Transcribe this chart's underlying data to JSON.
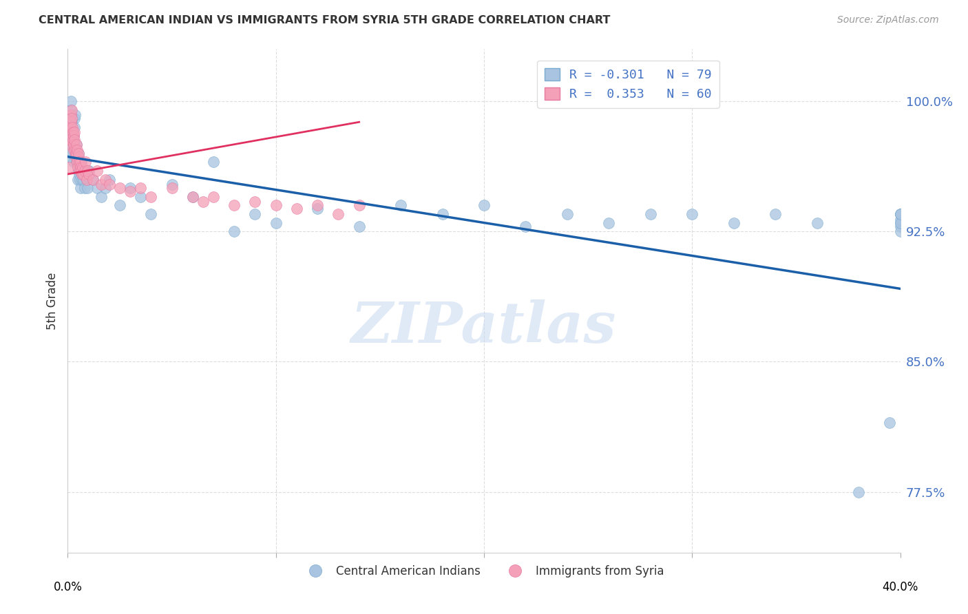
{
  "title": "CENTRAL AMERICAN INDIAN VS IMMIGRANTS FROM SYRIA 5TH GRADE CORRELATION CHART",
  "source": "Source: ZipAtlas.com",
  "ylabel": "5th Grade",
  "yticks": [
    77.5,
    85.0,
    92.5,
    100.0
  ],
  "ytick_labels": [
    "77.5%",
    "85.0%",
    "92.5%",
    "100.0%"
  ],
  "xlim": [
    0.0,
    40.0
  ],
  "ylim": [
    74.0,
    103.0
  ],
  "legend_blue_r": "-0.301",
  "legend_blue_n": "79",
  "legend_pink_r": "0.353",
  "legend_pink_n": "60",
  "blue_color": "#a8c4e0",
  "blue_edge_color": "#7aaad0",
  "pink_color": "#f4a0b8",
  "pink_edge_color": "#e878a0",
  "trend_blue_color": "#1a5fa8",
  "trend_pink_color": "#e03060",
  "watermark": "ZIPatlas",
  "watermark_color": [
    0.78,
    0.85,
    0.95
  ],
  "grid_color": "#dddddd",
  "background_color": "#ffffff",
  "blue_scatter_x": [
    0.05,
    0.08,
    0.1,
    0.12,
    0.14,
    0.15,
    0.16,
    0.18,
    0.2,
    0.22,
    0.24,
    0.25,
    0.27,
    0.28,
    0.3,
    0.32,
    0.33,
    0.35,
    0.37,
    0.38,
    0.4,
    0.42,
    0.44,
    0.45,
    0.47,
    0.5,
    0.52,
    0.55,
    0.58,
    0.6,
    0.62,
    0.65,
    0.68,
    0.7,
    0.75,
    0.8,
    0.85,
    0.9,
    0.95,
    1.0,
    1.2,
    1.4,
    1.6,
    1.8,
    2.0,
    2.5,
    3.0,
    3.5,
    4.0,
    5.0,
    6.0,
    7.0,
    8.0,
    9.0,
    10.0,
    12.0,
    14.0,
    16.0,
    18.0,
    20.0,
    22.0,
    24.0,
    26.0,
    28.0,
    30.0,
    32.0,
    34.0,
    36.0,
    38.0,
    39.5,
    40.0,
    40.0,
    40.0,
    40.0,
    40.0,
    40.0,
    40.0,
    40.0,
    40.0
  ],
  "blue_scatter_y": [
    96.8,
    98.5,
    97.2,
    99.1,
    98.3,
    100.0,
    99.5,
    98.8,
    97.5,
    99.0,
    98.2,
    97.8,
    96.5,
    98.0,
    97.5,
    99.0,
    98.5,
    99.2,
    97.0,
    96.8,
    97.5,
    96.5,
    97.0,
    96.8,
    95.5,
    96.0,
    97.0,
    95.8,
    95.5,
    96.2,
    95.0,
    96.5,
    95.5,
    96.0,
    95.5,
    95.0,
    96.0,
    95.5,
    95.0,
    96.0,
    95.5,
    95.0,
    94.5,
    95.0,
    95.5,
    94.0,
    95.0,
    94.5,
    93.5,
    95.2,
    94.5,
    96.5,
    92.5,
    93.5,
    93.0,
    93.8,
    92.8,
    94.0,
    93.5,
    94.0,
    92.8,
    93.5,
    93.0,
    93.5,
    93.5,
    93.0,
    93.5,
    93.0,
    77.5,
    81.5,
    92.8,
    93.0,
    93.2,
    93.5,
    92.5,
    93.5,
    93.5,
    93.0,
    93.5
  ],
  "pink_scatter_x": [
    0.05,
    0.08,
    0.1,
    0.12,
    0.14,
    0.15,
    0.16,
    0.18,
    0.2,
    0.22,
    0.24,
    0.25,
    0.27,
    0.28,
    0.3,
    0.32,
    0.33,
    0.35,
    0.37,
    0.38,
    0.4,
    0.42,
    0.44,
    0.45,
    0.47,
    0.5,
    0.52,
    0.55,
    0.58,
    0.6,
    0.62,
    0.65,
    0.68,
    0.7,
    0.75,
    0.8,
    0.85,
    0.9,
    0.95,
    1.0,
    1.2,
    1.4,
    1.6,
    1.8,
    2.0,
    2.5,
    3.0,
    3.5,
    4.0,
    5.0,
    6.0,
    6.5,
    7.0,
    8.0,
    9.0,
    10.0,
    11.0,
    12.0,
    13.0,
    14.0
  ],
  "pink_scatter_y": [
    96.2,
    97.5,
    98.2,
    97.8,
    98.5,
    99.2,
    98.8,
    99.5,
    99.0,
    98.5,
    97.8,
    98.2,
    97.2,
    98.0,
    97.5,
    98.2,
    97.8,
    97.2,
    96.8,
    97.0,
    97.5,
    97.0,
    96.5,
    97.2,
    96.2,
    96.8,
    97.0,
    96.5,
    96.0,
    96.5,
    96.2,
    96.0,
    95.8,
    96.2,
    95.8,
    96.0,
    96.5,
    95.5,
    96.0,
    95.8,
    95.5,
    96.0,
    95.2,
    95.5,
    95.2,
    95.0,
    94.8,
    95.0,
    94.5,
    95.0,
    94.5,
    94.2,
    94.5,
    94.0,
    94.2,
    94.0,
    93.8,
    94.0,
    93.5,
    94.0
  ],
  "blue_trend": [
    0.0,
    96.8,
    40.0,
    89.2
  ],
  "pink_trend": [
    0.0,
    95.8,
    14.0,
    98.8
  ]
}
